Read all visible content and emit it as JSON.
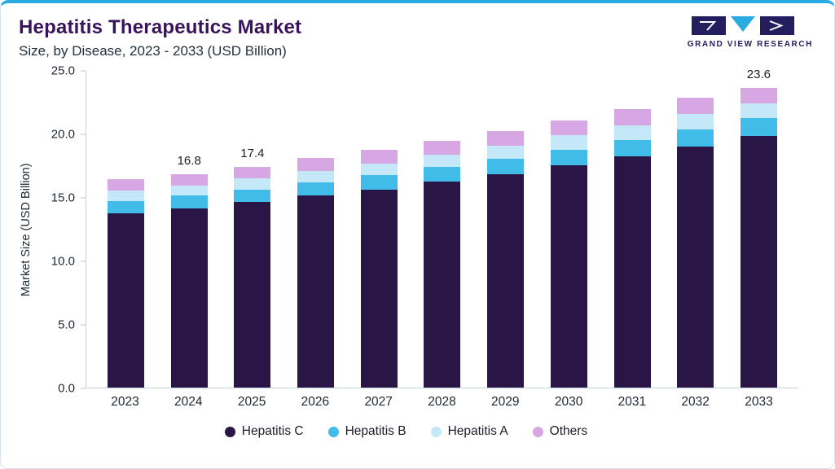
{
  "header": {
    "title": "Hepatitis Therapeutics Market",
    "subtitle": "Size, by Disease, 2023 - 2033 (USD Billion)",
    "logo_text": "GRAND VIEW RESEARCH"
  },
  "chart_data": {
    "type": "bar",
    "stacked": true,
    "title": "Hepatitis Therapeutics Market Size, by Disease, 2023 - 2033 (USD Billion)",
    "xlabel": "",
    "ylabel": "Market Size (USD Billion)",
    "ylim": [
      0,
      25
    ],
    "yticks": [
      "0.0",
      "5.0",
      "10.0",
      "15.0",
      "20.0",
      "25.0"
    ],
    "grid": false,
    "legend_position": "bottom",
    "categories": [
      "2023",
      "2024",
      "2025",
      "2026",
      "2027",
      "2028",
      "2029",
      "2030",
      "2031",
      "2032",
      "2033"
    ],
    "series": [
      {
        "name": "Hepatitis C",
        "color": "#2a1547",
        "values": [
          13.7,
          14.1,
          14.6,
          15.1,
          15.6,
          16.2,
          16.8,
          17.5,
          18.2,
          19.0,
          19.8
        ]
      },
      {
        "name": "Hepatitis B",
        "color": "#41bce8",
        "values": [
          1.0,
          1.0,
          1.0,
          1.05,
          1.1,
          1.15,
          1.2,
          1.25,
          1.3,
          1.35,
          1.4
        ]
      },
      {
        "name": "Hepatitis A",
        "color": "#c4e8f8",
        "values": [
          0.8,
          0.8,
          0.85,
          0.9,
          0.95,
          1.0,
          1.05,
          1.1,
          1.15,
          1.2,
          1.2
        ]
      },
      {
        "name": "Others",
        "color": "#d7a7e3",
        "values": [
          0.9,
          0.9,
          0.95,
          1.0,
          1.05,
          1.1,
          1.15,
          1.2,
          1.25,
          1.3,
          1.2
        ]
      }
    ],
    "bar_labels": {
      "2024": "16.8",
      "2025": "17.4",
      "2033": "23.6"
    },
    "accent_color": "#29abe2"
  }
}
